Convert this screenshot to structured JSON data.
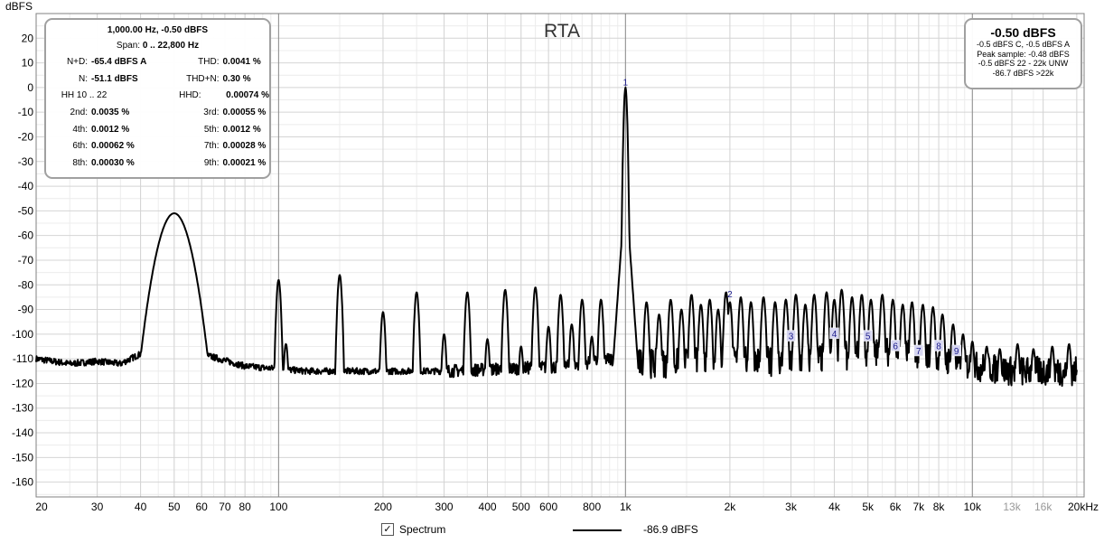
{
  "chart_data": {
    "type": "line",
    "title": "RTA",
    "ylabel": "dBFS",
    "xunit": "Hz",
    "xscale": "log",
    "xlim": [
      20,
      21000
    ],
    "ylim": [
      -166,
      30
    ],
    "yticks": [
      20,
      10,
      0,
      -10,
      -20,
      -30,
      -40,
      -50,
      -60,
      -70,
      -80,
      -90,
      -100,
      -110,
      -120,
      -130,
      -140,
      -150,
      -160
    ],
    "xticks": [
      {
        "value": 20,
        "label": "20"
      },
      {
        "value": 30,
        "label": "30"
      },
      {
        "value": 40,
        "label": "40"
      },
      {
        "value": 50,
        "label": "50"
      },
      {
        "value": 60,
        "label": "60"
      },
      {
        "value": 70,
        "label": "70"
      },
      {
        "value": 80,
        "label": "80"
      },
      {
        "value": 100,
        "label": "100"
      },
      {
        "value": 200,
        "label": "200"
      },
      {
        "value": 300,
        "label": "300"
      },
      {
        "value": 400,
        "label": "400"
      },
      {
        "value": 500,
        "label": "500"
      },
      {
        "value": 600,
        "label": "600"
      },
      {
        "value": 800,
        "label": "800"
      },
      {
        "value": 1000,
        "label": "1k"
      },
      {
        "value": 2000,
        "label": "2k"
      },
      {
        "value": 3000,
        "label": "3k"
      },
      {
        "value": 4000,
        "label": "4k"
      },
      {
        "value": 5000,
        "label": "5k"
      },
      {
        "value": 6000,
        "label": "6k"
      },
      {
        "value": 7000,
        "label": "7k"
      },
      {
        "value": 8000,
        "label": "8k"
      },
      {
        "value": 10000,
        "label": "10k"
      },
      {
        "value": 13000,
        "label": "13k",
        "grey": true
      },
      {
        "value": 16000,
        "label": "16k",
        "grey": true
      },
      {
        "value": 20000,
        "label": "20kHz"
      }
    ],
    "grid": true,
    "series": [
      {
        "name": "-86.9 dBFS",
        "color": "#000000",
        "noise_floor": [
          [
            20,
            -110
          ],
          [
            25,
            -112
          ],
          [
            30,
            -111
          ],
          [
            35,
            -112
          ],
          [
            40,
            -108
          ],
          [
            45,
            -100
          ],
          [
            60,
            -108
          ],
          [
            80,
            -113
          ],
          [
            120,
            -115
          ],
          [
            300,
            -115
          ],
          [
            700,
            -113
          ],
          [
            900,
            -110
          ],
          [
            1100,
            -112
          ],
          [
            2000,
            -111
          ],
          [
            3000,
            -111
          ],
          [
            5000,
            -108
          ],
          [
            6000,
            -107
          ],
          [
            8000,
            -110
          ],
          [
            10000,
            -113
          ],
          [
            13000,
            -115
          ],
          [
            20000,
            -115
          ]
        ],
        "peaks": [
          [
            50,
            -51
          ],
          [
            100,
            -78
          ],
          [
            105,
            -104
          ],
          [
            150,
            -76
          ],
          [
            200,
            -91
          ],
          [
            250,
            -83
          ],
          [
            300,
            -100
          ],
          [
            350,
            -83
          ],
          [
            400,
            -102
          ],
          [
            450,
            -82
          ],
          [
            500,
            -105
          ],
          [
            550,
            -81
          ],
          [
            600,
            -97
          ],
          [
            650,
            -84
          ],
          [
            700,
            -96
          ],
          [
            750,
            -86
          ],
          [
            800,
            -101
          ],
          [
            850,
            -86
          ],
          [
            950,
            -96
          ],
          [
            1000,
            0
          ],
          [
            1050,
            -100
          ],
          [
            1150,
            -87
          ],
          [
            1250,
            -92
          ],
          [
            1350,
            -86
          ],
          [
            1450,
            -90
          ],
          [
            1550,
            -84
          ],
          [
            1650,
            -88
          ],
          [
            1750,
            -86
          ],
          [
            1850,
            -90
          ],
          [
            1950,
            -83
          ],
          [
            2000,
            -87
          ],
          [
            2150,
            -85
          ],
          [
            2300,
            -87
          ],
          [
            2500,
            -85
          ],
          [
            2700,
            -87
          ],
          [
            2900,
            -86
          ],
          [
            3100,
            -84
          ],
          [
            3300,
            -88
          ],
          [
            3500,
            -84
          ],
          [
            3800,
            -83
          ],
          [
            4000,
            -86
          ],
          [
            4200,
            -82
          ],
          [
            4500,
            -85
          ],
          [
            4800,
            -84
          ],
          [
            5100,
            -86
          ],
          [
            5500,
            -84
          ],
          [
            5900,
            -86
          ],
          [
            6300,
            -88
          ],
          [
            6700,
            -87
          ],
          [
            7200,
            -88
          ],
          [
            7700,
            -89
          ],
          [
            8200,
            -92
          ],
          [
            8800,
            -96
          ],
          [
            9400,
            -100
          ],
          [
            10000,
            -103
          ],
          [
            11000,
            -105
          ],
          [
            12000,
            -106
          ],
          [
            13500,
            -104
          ],
          [
            15000,
            -106
          ],
          [
            17000,
            -105
          ],
          [
            19000,
            -104
          ]
        ]
      }
    ],
    "harmonic_markers": [
      {
        "label": "1",
        "freq": 1000,
        "db": 2
      },
      {
        "label": "2",
        "freq": 2000,
        "db": -84
      },
      {
        "label": "3",
        "freq": 3000,
        "db": -101
      },
      {
        "label": "4",
        "freq": 4000,
        "db": -100
      },
      {
        "label": "5",
        "freq": 5000,
        "db": -101
      },
      {
        "label": "6",
        "freq": 6000,
        "db": -105
      },
      {
        "label": "7",
        "freq": 7000,
        "db": -107
      },
      {
        "label": "8",
        "freq": 8000,
        "db": -105
      },
      {
        "label": "9",
        "freq": 9000,
        "db": -107
      }
    ]
  },
  "stats_panel": {
    "line1": "1,000.00 Hz, -0.50 dBFS",
    "span_label": "Span:",
    "span_value": "0 .. 22,800 Hz",
    "rows": [
      [
        {
          "label": "N+D:",
          "value": "-65.4 dBFS A"
        },
        {
          "label": "THD:",
          "value": "0.0041 %"
        }
      ],
      [
        {
          "label": "N:",
          "value": "-51.1 dBFS"
        },
        {
          "label": "THD+N:",
          "value": "0.30 %"
        }
      ],
      [
        {
          "label": "HH 10 .. 22",
          "value": ""
        },
        {
          "label": "HHD:",
          "value": "0.00074 %"
        }
      ],
      [
        {
          "label": "2nd:",
          "value": "0.0035 %"
        },
        {
          "label": "3rd:",
          "value": "0.00055 %"
        }
      ],
      [
        {
          "label": "4th:",
          "value": "0.0012 %"
        },
        {
          "label": "5th:",
          "value": "0.0012 %"
        }
      ],
      [
        {
          "label": "6th:",
          "value": "0.00062 %"
        },
        {
          "label": "7th:",
          "value": "0.00028 %"
        }
      ],
      [
        {
          "label": "8th:",
          "value": "0.00030 %"
        },
        {
          "label": "9th:",
          "value": "0.00021 %"
        }
      ]
    ]
  },
  "level_panel": {
    "main": "-0.50 dBFS",
    "lines": [
      "-0.5 dBFS C, -0.5 dBFS A",
      "Peak sample: -0.48 dBFS",
      "-0.5 dBFS 22 - 22k UNW",
      "-86.7 dBFS >22k"
    ]
  },
  "footer": {
    "spectrum_checked": "✓",
    "spectrum_label": "Spectrum",
    "legend_value": "-86.9 dBFS"
  }
}
